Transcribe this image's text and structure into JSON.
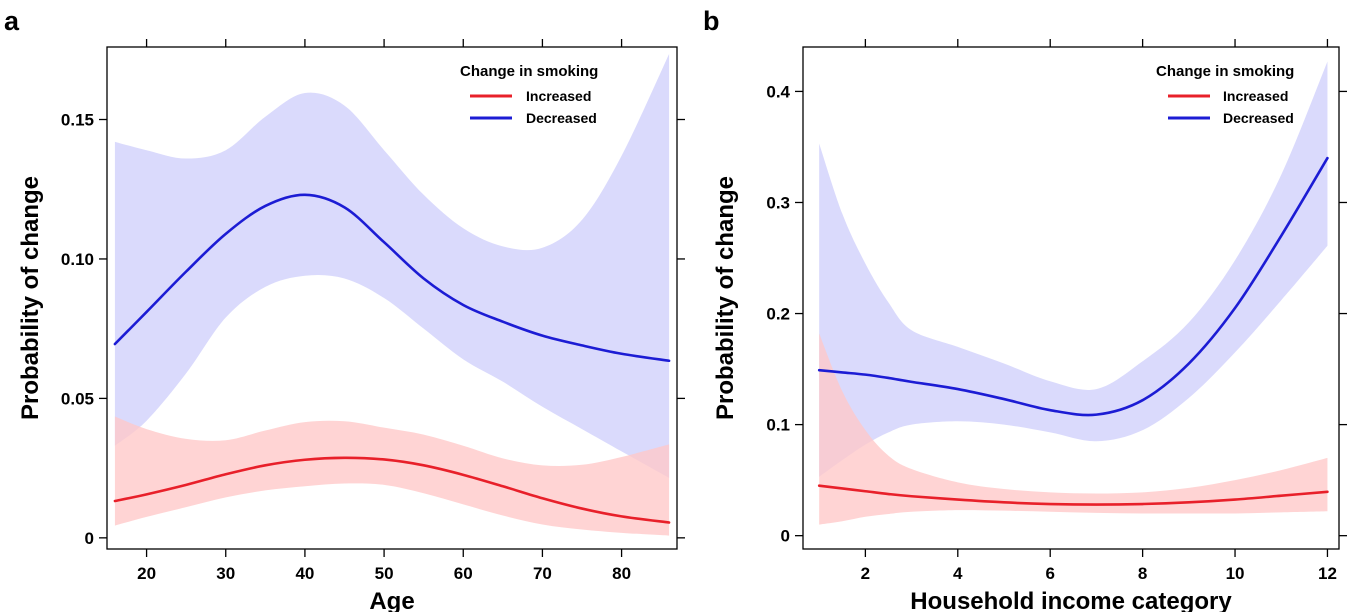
{
  "chart_data": [
    {
      "type": "line",
      "panel_label": "a",
      "xlabel": "Age",
      "ylabel": "Probability of change",
      "xlim": [
        15,
        87
      ],
      "ylim": [
        -0.004,
        0.176
      ],
      "xticks": [
        20,
        30,
        40,
        50,
        60,
        70,
        80
      ],
      "yticks": [
        0,
        0.05,
        0.1,
        0.15
      ],
      "ytick_labels": [
        "0",
        "0.05",
        "0.10",
        "0.15"
      ],
      "legend": {
        "title": "Change in smoking",
        "placement": "top-right"
      },
      "series": [
        {
          "name": "Increased",
          "color": "#e8202a",
          "band_color": "#ffc8c8",
          "x": [
            16,
            20,
            25,
            30,
            35,
            40,
            45,
            50,
            55,
            60,
            65,
            70,
            75,
            80,
            86
          ],
          "y": [
            0.0132,
            0.0156,
            0.019,
            0.0228,
            0.026,
            0.028,
            0.0287,
            0.0281,
            0.026,
            0.0226,
            0.0185,
            0.0142,
            0.0105,
            0.0077,
            0.0055
          ],
          "lower": [
            0.0044,
            0.0075,
            0.011,
            0.0145,
            0.017,
            0.0185,
            0.0195,
            0.019,
            0.016,
            0.012,
            0.008,
            0.0048,
            0.003,
            0.0018,
            0.0008
          ],
          "upper": [
            0.0435,
            0.039,
            0.0355,
            0.035,
            0.0385,
            0.0415,
            0.0418,
            0.0395,
            0.037,
            0.033,
            0.0285,
            0.026,
            0.0262,
            0.029,
            0.0335
          ]
        },
        {
          "name": "Decreased",
          "color": "#1c1cd4",
          "band_color": "#d0d0fb",
          "x": [
            16,
            20,
            25,
            30,
            35,
            40,
            45,
            50,
            55,
            60,
            65,
            70,
            75,
            80,
            86
          ],
          "y": [
            0.0695,
            0.081,
            0.0955,
            0.109,
            0.119,
            0.123,
            0.1185,
            0.106,
            0.093,
            0.0835,
            0.0775,
            0.0725,
            0.069,
            0.066,
            0.0635
          ],
          "lower": [
            0.033,
            0.042,
            0.059,
            0.079,
            0.09,
            0.094,
            0.093,
            0.086,
            0.075,
            0.064,
            0.056,
            0.047,
            0.039,
            0.031,
            0.0215
          ],
          "upper": [
            0.142,
            0.139,
            0.136,
            0.139,
            0.151,
            0.1595,
            0.155,
            0.139,
            0.123,
            0.111,
            0.1045,
            0.104,
            0.114,
            0.137,
            0.1735
          ]
        }
      ]
    },
    {
      "type": "line",
      "panel_label": "b",
      "xlabel": "Household income category",
      "ylabel": "Probability of change",
      "xlim": [
        0.65,
        12.25
      ],
      "ylim": [
        -0.012,
        0.44
      ],
      "xticks": [
        2,
        4,
        6,
        8,
        10,
        12
      ],
      "yticks": [
        0,
        0.1,
        0.2,
        0.3,
        0.4
      ],
      "ytick_labels": [
        "0",
        "0.1",
        "0.2",
        "0.3",
        "0.4"
      ],
      "legend": {
        "title": "Change in smoking",
        "placement": "top-right"
      },
      "series": [
        {
          "name": "Increased",
          "color": "#e8202a",
          "band_color": "#ffc8c8",
          "x": [
            1,
            1.5,
            2,
            2.5,
            3,
            4,
            5,
            6,
            7,
            8,
            9,
            10,
            11,
            12
          ],
          "y": [
            0.045,
            0.0425,
            0.04,
            0.0375,
            0.0355,
            0.0325,
            0.03,
            0.0285,
            0.028,
            0.0285,
            0.03,
            0.0325,
            0.036,
            0.0395
          ],
          "lower": [
            0.01,
            0.013,
            0.017,
            0.0195,
            0.0215,
            0.023,
            0.0225,
            0.0215,
            0.0205,
            0.02,
            0.02,
            0.02,
            0.021,
            0.022
          ],
          "upper": [
            0.182,
            0.13,
            0.095,
            0.072,
            0.06,
            0.048,
            0.042,
            0.039,
            0.038,
            0.039,
            0.043,
            0.05,
            0.059,
            0.07
          ]
        },
        {
          "name": "Decreased",
          "color": "#1c1cd4",
          "band_color": "#d0d0fb",
          "x": [
            1,
            1.5,
            2,
            2.5,
            3,
            4,
            5,
            6,
            7,
            8,
            9,
            10,
            11,
            12
          ],
          "y": [
            0.149,
            0.147,
            0.145,
            0.142,
            0.1385,
            0.132,
            0.123,
            0.113,
            0.109,
            0.122,
            0.155,
            0.205,
            0.27,
            0.34
          ],
          "lower": [
            0.053,
            0.068,
            0.082,
            0.093,
            0.1,
            0.103,
            0.1,
            0.093,
            0.085,
            0.095,
            0.124,
            0.165,
            0.212,
            0.261
          ],
          "upper": [
            0.353,
            0.29,
            0.245,
            0.21,
            0.185,
            0.17,
            0.155,
            0.139,
            0.132,
            0.157,
            0.192,
            0.248,
            0.325,
            0.427
          ]
        }
      ]
    }
  ]
}
